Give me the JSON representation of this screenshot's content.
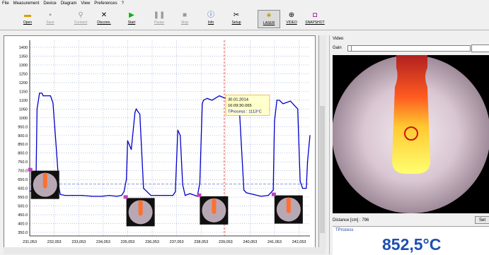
{
  "menu": [
    "File",
    "Measurement",
    "Device",
    "Diagram",
    "View",
    "Preferences",
    "?"
  ],
  "toolbar": {
    "open": "Open",
    "save": "Save",
    "connect": "Connect",
    "disconnect": "Disconn.",
    "start": "Start",
    "pause": "Pause",
    "stop": "Stop",
    "info": "Info",
    "setup": "Setup",
    "laser": "LASER",
    "video": "VIDEO",
    "snapshot": "SNAPSHOT"
  },
  "chart": {
    "y_ticks": [
      "1400",
      "1350",
      "1300",
      "1250",
      "1200",
      "1150",
      "1100",
      "1050",
      "1000",
      "950.0",
      "900.0",
      "850.0",
      "800.0",
      "750.0",
      "700.0",
      "650.0",
      "600.0",
      "550.0",
      "500.0",
      "450.0",
      "400.0",
      "350.0"
    ],
    "x_ticks": [
      "231,053",
      "232,053",
      "233,053",
      "234,053",
      "235,053",
      "236,053",
      "237,053",
      "238,053",
      "239,053",
      "240,053",
      "241,053",
      "242,053"
    ],
    "tooltip": {
      "date": "30.01.2014",
      "time": "16:09:30.065",
      "value": "TProcess : 1113°C"
    },
    "colors": {
      "line": "#0000c8",
      "cursor": "#e03030",
      "tooltip_bg": "#ffffcc"
    }
  },
  "chart_data": {
    "type": "line",
    "x": [
      231.05,
      231.3,
      231.35,
      231.45,
      231.55,
      231.6,
      231.9,
      232.0,
      232.15,
      232.25,
      232.3,
      232.5,
      232.8,
      233.2,
      233.6,
      234.0,
      234.3,
      234.6,
      234.8,
      234.9,
      235.0,
      235.05,
      235.2,
      235.35,
      235.4,
      235.55,
      235.7,
      236.0,
      236.3,
      236.6,
      236.9,
      237.0,
      237.1,
      237.2,
      237.3,
      237.4,
      237.6,
      237.8,
      237.9,
      238.0,
      238.1,
      238.15,
      238.3,
      238.5,
      238.8,
      239.0,
      239.2,
      239.4,
      239.6,
      239.7,
      239.8,
      239.9,
      240.2,
      240.5,
      240.8,
      241.0,
      241.05,
      241.15,
      241.25,
      241.4,
      241.7,
      242.0,
      242.1,
      242.2,
      242.35,
      242.4,
      242.5
    ],
    "y": [
      585,
      580,
      1050,
      1140,
      1140,
      1125,
      1125,
      1085,
      800,
      600,
      565,
      560,
      560,
      560,
      555,
      555,
      560,
      555,
      560,
      580,
      650,
      870,
      820,
      1030,
      1050,
      1020,
      600,
      560,
      560,
      560,
      560,
      580,
      930,
      900,
      620,
      560,
      570,
      560,
      555,
      630,
      1080,
      1100,
      1110,
      1100,
      1125,
      1113,
      1110,
      1100,
      1090,
      840,
      590,
      575,
      565,
      555,
      560,
      590,
      980,
      1100,
      1100,
      1080,
      1095,
      1050,
      640,
      600,
      600,
      750,
      900
    ],
    "xlim": [
      231.05,
      242.5
    ],
    "ylim": [
      330,
      1440
    ],
    "grid": true
  },
  "video": {
    "title": "Video",
    "gain_label": "Gain",
    "distance": "Distance [cm] : 796",
    "set": "Set",
    "tprocess_label": "TProzess",
    "tprocess_value": "852,5°C"
  }
}
